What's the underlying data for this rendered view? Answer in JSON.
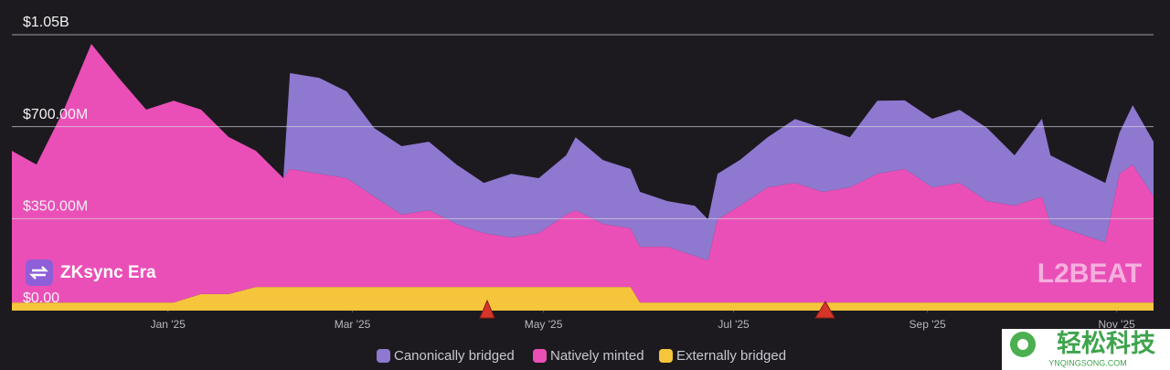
{
  "chart_data": {
    "type": "area",
    "stacked": true,
    "project": "ZKsync Era",
    "watermark": "L2BEAT",
    "site_watermark": {
      "title": "轻松科技",
      "url": "YNQINGSONG.COM"
    },
    "x": [
      -1.65,
      -1.39,
      -1.1,
      -0.81,
      -0.52,
      -0.23,
      0.06,
      0.35,
      0.64,
      0.93,
      1.22,
      1.29,
      1.6,
      1.89,
      2.18,
      2.47,
      2.76,
      3.05,
      3.34,
      3.63,
      3.92,
      4.21,
      4.31,
      4.6,
      4.89,
      4.99,
      5.28,
      5.57,
      5.71,
      5.81,
      6.05,
      6.34,
      6.63,
      6.92,
      7.21,
      7.5,
      7.79,
      8.08,
      8.37,
      8.66,
      8.95,
      9.24,
      9.33,
      9.62,
      9.91,
      10.06,
      10.2,
      10.42
    ],
    "xlim": [
      -1.65,
      10.42
    ],
    "xticks": [
      {
        "value": 0,
        "label": "Jan '25"
      },
      {
        "value": 1.95,
        "label": "Mar '25"
      },
      {
        "value": 3.97,
        "label": "May '25"
      },
      {
        "value": 5.98,
        "label": "Jul '25"
      },
      {
        "value": 8.03,
        "label": "Sep '25"
      },
      {
        "value": 10.03,
        "label": "Nov '25"
      }
    ],
    "ylim": [
      0,
      1050
    ],
    "yticks": [
      {
        "value": 0,
        "label": "$0.00"
      },
      {
        "value": 350,
        "label": "$350.00M"
      },
      {
        "value": 700,
        "label": "$700.00M"
      },
      {
        "value": 1050,
        "label": "$1.05B"
      }
    ],
    "grid": true,
    "series": [
      {
        "name": "Canonically bridged",
        "color": "#8f78cf",
        "values": [
          0,
          0,
          0,
          0,
          0,
          0,
          0,
          0,
          0,
          0,
          0,
          365,
          365,
          330,
          261,
          261,
          261,
          226,
          191,
          243,
          209,
          226,
          278,
          243,
          226,
          209,
          174,
          191,
          156,
          174,
          174,
          191,
          243,
          243,
          191,
          278,
          261,
          261,
          278,
          278,
          191,
          296,
          261,
          243,
          226,
          156,
          226,
          209
        ]
      },
      {
        "name": "Natively minted",
        "color": "#ea4fb7",
        "values": [
          577,
          525,
          734,
          984,
          855,
          734,
          768,
          702,
          598,
          518,
          414,
          449,
          431,
          414,
          344,
          275,
          292,
          240,
          205,
          188,
          205,
          275,
          292,
          240,
          223,
          212,
          212,
          177,
          160,
          316,
          369,
          438,
          455,
          421,
          438,
          490,
          508,
          438,
          455,
          386,
          369,
          403,
          299,
          264,
          229,
          490,
          525,
          403
        ]
      },
      {
        "name": "Externally bridged",
        "color": "#f6c53c",
        "values": [
          31,
          31,
          31,
          31,
          31,
          31,
          31,
          63,
          63,
          90,
          90,
          90,
          90,
          90,
          90,
          90,
          90,
          90,
          90,
          90,
          90,
          90,
          90,
          90,
          90,
          31,
          31,
          31,
          31,
          31,
          31,
          31,
          31,
          31,
          31,
          31,
          31,
          31,
          31,
          31,
          31,
          31,
          31,
          31,
          31,
          31,
          31,
          31
        ]
      }
    ]
  }
}
